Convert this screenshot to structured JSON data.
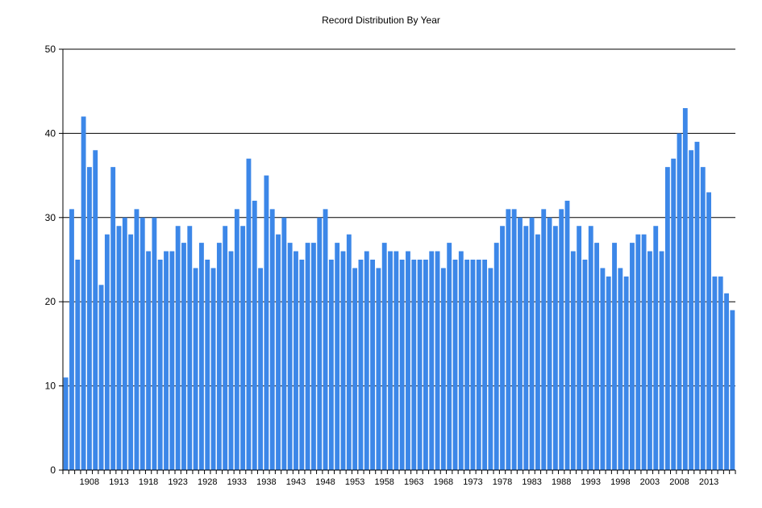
{
  "chart_data": {
    "type": "bar",
    "title": "Record Distribution By Year",
    "xlabel": "",
    "ylabel": "",
    "ylim": [
      0,
      50
    ],
    "y_ticks": [
      0,
      10,
      20,
      30,
      40,
      50
    ],
    "x_tick_labels": [
      "1908",
      "1913",
      "1918",
      "1923",
      "1928",
      "1933",
      "1938",
      "1943",
      "1948",
      "1953",
      "1958",
      "1963",
      "1968",
      "1973",
      "1978",
      "1983",
      "1988",
      "1993",
      "1998",
      "2003",
      "2008",
      "2013"
    ],
    "grid": "horizontal",
    "bar_color": "#3c87e8",
    "categories": [
      1904,
      1905,
      1906,
      1907,
      1908,
      1909,
      1910,
      1911,
      1912,
      1913,
      1914,
      1915,
      1916,
      1917,
      1918,
      1919,
      1920,
      1921,
      1922,
      1923,
      1924,
      1925,
      1926,
      1927,
      1928,
      1929,
      1930,
      1931,
      1932,
      1933,
      1934,
      1935,
      1936,
      1937,
      1938,
      1939,
      1940,
      1941,
      1942,
      1943,
      1944,
      1945,
      1946,
      1947,
      1948,
      1949,
      1950,
      1951,
      1952,
      1953,
      1954,
      1955,
      1956,
      1957,
      1958,
      1959,
      1960,
      1961,
      1962,
      1963,
      1964,
      1965,
      1966,
      1967,
      1968,
      1969,
      1970,
      1971,
      1972,
      1973,
      1974,
      1975,
      1976,
      1977,
      1978,
      1979,
      1980,
      1981,
      1982,
      1983,
      1984,
      1985,
      1986,
      1987,
      1988,
      1989,
      1990,
      1991,
      1992,
      1993,
      1994,
      1995,
      1996,
      1997,
      1998,
      1999,
      2000,
      2001,
      2002,
      2003,
      2004,
      2005,
      2006,
      2007,
      2008,
      2009,
      2010,
      2011,
      2012,
      2013,
      2014,
      2015,
      2016,
      2017
    ],
    "values": [
      11,
      31,
      25,
      42,
      36,
      38,
      22,
      28,
      36,
      29,
      30,
      28,
      31,
      30,
      26,
      30,
      25,
      26,
      26,
      29,
      27,
      29,
      24,
      27,
      25,
      24,
      27,
      29,
      26,
      31,
      29,
      37,
      32,
      24,
      35,
      31,
      28,
      30,
      27,
      26,
      25,
      27,
      27,
      30,
      31,
      25,
      27,
      26,
      28,
      24,
      25,
      26,
      25,
      24,
      27,
      26,
      26,
      25,
      26,
      25,
      25,
      25,
      26,
      26,
      24,
      27,
      25,
      26,
      25,
      25,
      25,
      25,
      24,
      27,
      29,
      31,
      31,
      30,
      29,
      30,
      28,
      31,
      30,
      29,
      31,
      32,
      26,
      29,
      25,
      29,
      27,
      24,
      23,
      27,
      24,
      23,
      27,
      28,
      28,
      26,
      29,
      26,
      36,
      37,
      40,
      43,
      38,
      39,
      36,
      33,
      23,
      23,
      21,
      19
    ]
  }
}
